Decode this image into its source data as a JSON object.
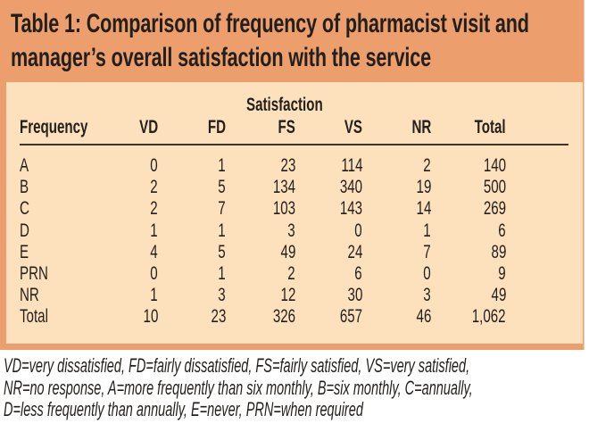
{
  "table": {
    "title_lines": [
      "Table 1: Comparison of frequency of pharmacist visit and",
      "manager’s overall satisfaction with the service"
    ],
    "group_header": "Satisfaction",
    "columns": [
      "Frequency",
      "VD",
      "FD",
      "FS",
      "VS",
      "NR",
      "Total"
    ],
    "rows": [
      {
        "label": "A",
        "values": [
          "0",
          "1",
          "23",
          "114",
          "2",
          "140"
        ]
      },
      {
        "label": "B",
        "values": [
          "2",
          "5",
          "134",
          "340",
          "19",
          "500"
        ]
      },
      {
        "label": "C",
        "values": [
          "2",
          "7",
          "103",
          "143",
          "14",
          "269"
        ]
      },
      {
        "label": "D",
        "values": [
          "1",
          "1",
          "3",
          "0",
          "1",
          "6"
        ]
      },
      {
        "label": "E",
        "values": [
          "4",
          "5",
          "49",
          "24",
          "7",
          "89"
        ]
      },
      {
        "label": "PRN",
        "values": [
          "0",
          "1",
          "2",
          "6",
          "0",
          "9"
        ]
      },
      {
        "label": "NR",
        "values": [
          "1",
          "3",
          "12",
          "30",
          "3",
          "49"
        ]
      },
      {
        "label": "Total",
        "values": [
          "10",
          "23",
          "326",
          "657",
          "46",
          "1,062"
        ]
      }
    ],
    "footnote_lines": [
      "VD=very dissatisfied, FD=fairly dissatisfied, FS=fairly satisfied, VS=very satisfied,",
      "NR=no response, A=more frequently than six monthly, B=six monthly, C=annually,",
      "D=less frequently than annually, E=never, PRN=when required"
    ]
  },
  "colors": {
    "frame": "#ec9f6c",
    "panel": "#fde1bd",
    "text": "#231f1c"
  }
}
